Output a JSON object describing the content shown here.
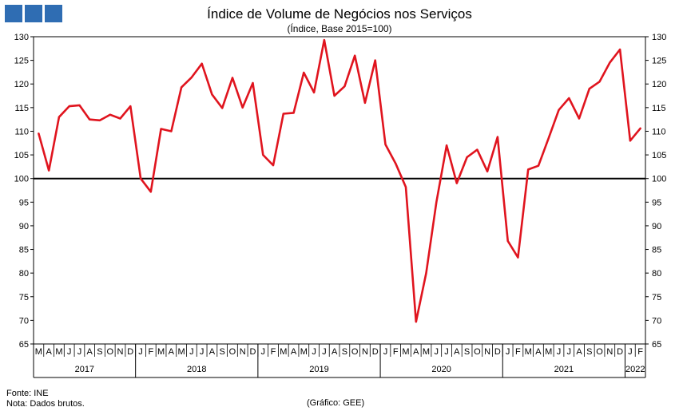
{
  "chart_data": {
    "type": "line",
    "title": "Índice de Volume de Negócios nos Serviços",
    "subtitle": "(Índice, Base 2015=100)",
    "ylim": [
      65,
      130
    ],
    "yticks": [
      65,
      70,
      75,
      80,
      85,
      90,
      95,
      100,
      105,
      110,
      115,
      120,
      125,
      130
    ],
    "reference_line": 100,
    "month_labels": [
      "M",
      "A",
      "M",
      "J",
      "J",
      "A",
      "S",
      "O",
      "N",
      "D",
      "J",
      "F",
      "M",
      "A",
      "M",
      "J",
      "J",
      "A",
      "S",
      "O",
      "N",
      "D",
      "J",
      "F",
      "M",
      "A",
      "M",
      "J",
      "J",
      "A",
      "S",
      "O",
      "N",
      "D",
      "J",
      "F",
      "M",
      "A",
      "M",
      "J",
      "J",
      "A",
      "S",
      "O",
      "N",
      "D",
      "J",
      "F",
      "M",
      "A",
      "M",
      "J",
      "J",
      "A",
      "S",
      "O",
      "N",
      "D",
      "J",
      "F"
    ],
    "years": [
      {
        "label": "2017",
        "start": 0,
        "months": 10
      },
      {
        "label": "2018",
        "start": 10,
        "months": 12
      },
      {
        "label": "2019",
        "start": 22,
        "months": 12
      },
      {
        "label": "2020",
        "start": 34,
        "months": 12
      },
      {
        "label": "2021",
        "start": 46,
        "months": 12
      },
      {
        "label": "2022",
        "start": 58,
        "months": 2
      }
    ],
    "series": [
      {
        "color": "#e0141e",
        "values": [
          109.5,
          101.7,
          113.0,
          115.3,
          115.5,
          112.5,
          112.3,
          113.5,
          112.7,
          115.3,
          100.0,
          97.2,
          110.5,
          110.0,
          119.3,
          121.4,
          124.3,
          117.8,
          114.9,
          121.3,
          115.0,
          120.2,
          105.0,
          102.8,
          113.7,
          113.9,
          122.4,
          118.2,
          129.3,
          117.5,
          119.5,
          126.0,
          116.0,
          125.0,
          107.2,
          103.2,
          98.2,
          69.7,
          80.0,
          95.0,
          107.0,
          99.0,
          104.5,
          106.1,
          101.5,
          108.8,
          86.8,
          83.3,
          101.9,
          102.7,
          108.5,
          114.5,
          117.0,
          112.7,
          119.0,
          120.5,
          124.5,
          127.3,
          108.0,
          110.6
        ]
      }
    ]
  },
  "footer": {
    "source": "Fonte: INE",
    "note": "Nota: Dados brutos.",
    "credit": "(Gráfico: GEE)"
  }
}
